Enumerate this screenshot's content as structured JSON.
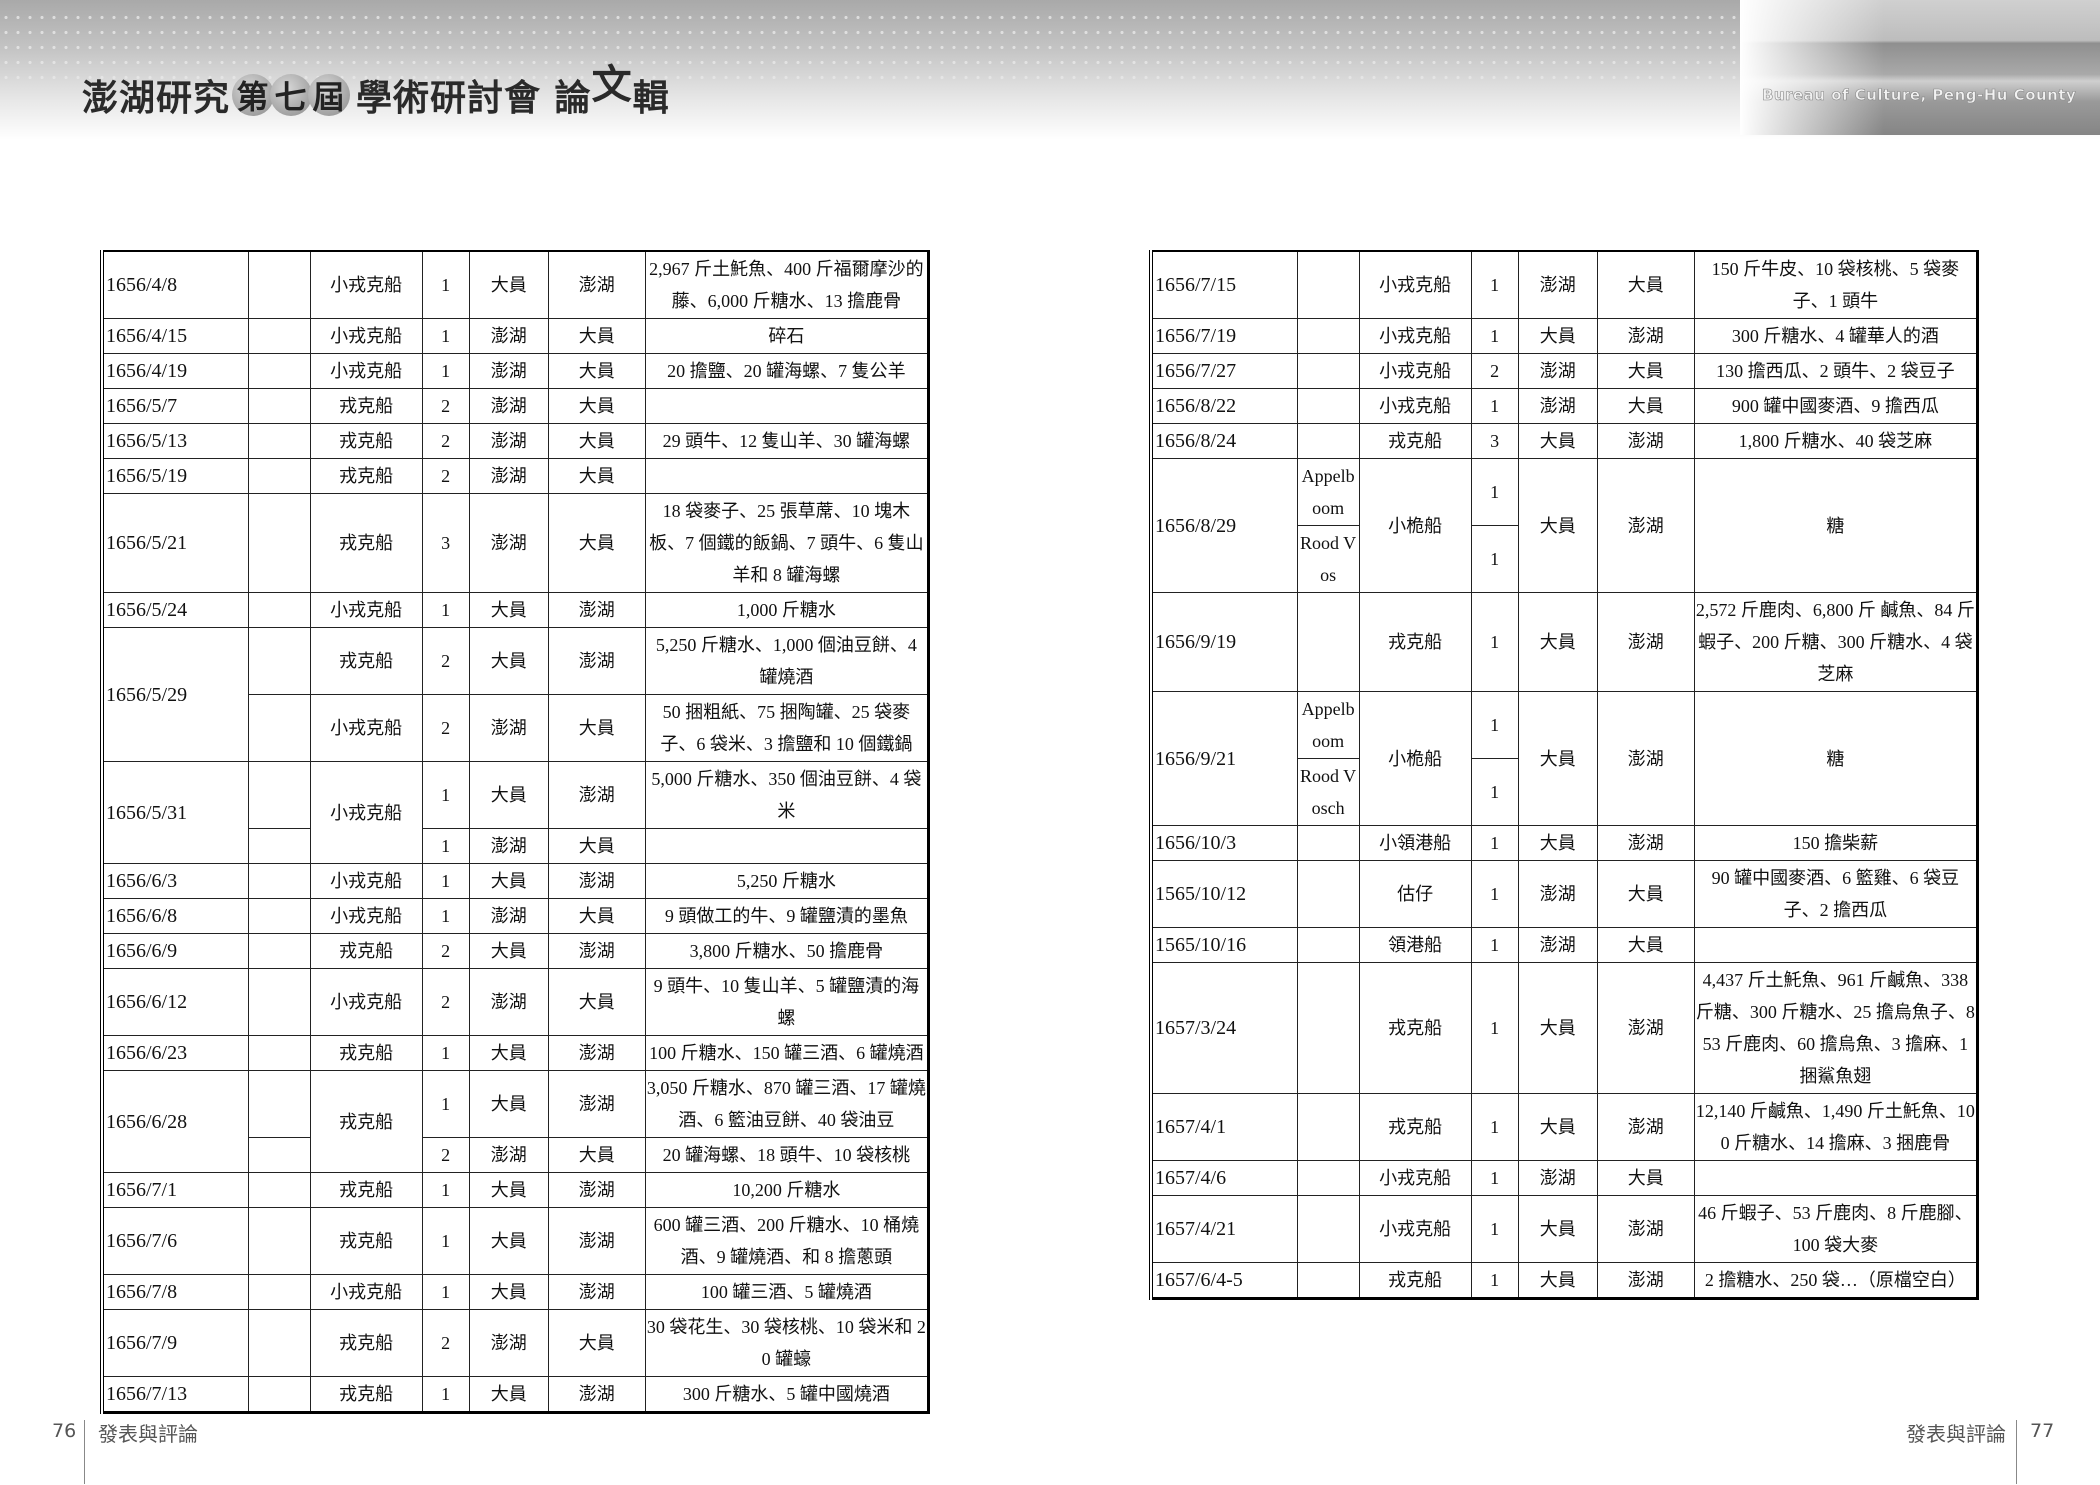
{
  "header": {
    "title_pre": "澎湖研究",
    "title_edition": [
      "第",
      "七",
      "屆"
    ],
    "title_mid": "學術研討會 論",
    "title_sup": "文",
    "title_end": "輯",
    "bureau": "Bureau of Culture, Peng-Hu County"
  },
  "tables": {
    "left": [
      [
        "1656/4/8",
        "",
        "小戎克船",
        "1",
        "大員",
        "澎湖",
        "2,967 斤土魠魚、400 斤福爾摩沙的藤、6,000 斤糖水、13 擔鹿骨"
      ],
      [
        "1656/4/15",
        "",
        "小戎克船",
        "1",
        "澎湖",
        "大員",
        "碎石"
      ],
      [
        "1656/4/19",
        "",
        "小戎克船",
        "1",
        "澎湖",
        "大員",
        "20 擔鹽、20 罐海螺、7 隻公羊"
      ],
      [
        "1656/5/7",
        "",
        "戎克船",
        "2",
        "澎湖",
        "大員",
        ""
      ],
      [
        "1656/5/13",
        "",
        "戎克船",
        "2",
        "澎湖",
        "大員",
        "29 頭牛、12 隻山羊、30 罐海螺"
      ],
      [
        "1656/5/19",
        "",
        "戎克船",
        "2",
        "澎湖",
        "大員",
        ""
      ],
      [
        "1656/5/21",
        "",
        "戎克船",
        "3",
        "澎湖",
        "大員",
        "18 袋麥子、25 張草蓆、10 塊木板、7 個鐵的飯鍋、7 頭牛、6 隻山羊和 8 罐海螺"
      ],
      [
        "1656/5/24",
        "",
        "小戎克船",
        "1",
        "大員",
        "澎湖",
        "1,000 斤糖水"
      ],
      [
        "1656/5/29",
        "",
        "戎克船",
        "2",
        "大員",
        "澎湖",
        "5,250 斤糖水、1,000 個油豆餅、4 罐燒酒"
      ],
      [
        null,
        "",
        "小戎克船",
        "2",
        "澎湖",
        "大員",
        "50 捆粗紙、75 捆陶罐、25 袋麥子、6 袋米、3 擔鹽和 10 個鐵鍋"
      ],
      [
        "1656/5/31",
        "",
        "小戎克船",
        "1",
        "大員",
        "澎湖",
        "5,000 斤糖水、350 個油豆餅、4 袋米"
      ],
      [
        null,
        "",
        null,
        "1",
        "澎湖",
        "大員",
        ""
      ],
      [
        "1656/6/3",
        "",
        "小戎克船",
        "1",
        "大員",
        "澎湖",
        "5,250 斤糖水"
      ],
      [
        "1656/6/8",
        "",
        "小戎克船",
        "1",
        "澎湖",
        "大員",
        "9 頭做工的牛、9 罐鹽漬的墨魚"
      ],
      [
        "1656/6/9",
        "",
        "戎克船",
        "2",
        "大員",
        "澎湖",
        "3,800 斤糖水、50 擔鹿骨"
      ],
      [
        "1656/6/12",
        "",
        "小戎克船",
        "2",
        "澎湖",
        "大員",
        "9 頭牛、10 隻山羊、5 罐鹽漬的海螺"
      ],
      [
        "1656/6/23",
        "",
        "戎克船",
        "1",
        "大員",
        "澎湖",
        "100 斤糖水、150 罐三酒、6 罐燒酒"
      ],
      [
        "1656/6/28",
        "",
        "戎克船",
        "1",
        "大員",
        "澎湖",
        "3,050 斤糖水、870 罐三酒、17 罐燒酒、6 籃油豆餅、40 袋油豆"
      ],
      [
        null,
        "",
        null,
        "2",
        "澎湖",
        "大員",
        "20 罐海螺、18 頭牛、10 袋核桃"
      ],
      [
        "1656/7/1",
        "",
        "戎克船",
        "1",
        "大員",
        "澎湖",
        "10,200 斤糖水"
      ],
      [
        "1656/7/6",
        "",
        "戎克船",
        "1",
        "大員",
        "澎湖",
        "600 罐三酒、200 斤糖水、10 桶燒酒、9 罐燒酒、和 8 擔蔥頭"
      ],
      [
        "1656/7/8",
        "",
        "小戎克船",
        "1",
        "大員",
        "澎湖",
        "100 罐三酒、5 罐燒酒"
      ],
      [
        "1656/7/9",
        "",
        "戎克船",
        "2",
        "澎湖",
        "大員",
        "30 袋花生、30 袋核桃、10 袋米和 20 罐蠔"
      ],
      [
        "1656/7/13",
        "",
        "戎克船",
        "1",
        "大員",
        "澎湖",
        "300 斤糖水、5 罐中國燒酒"
      ]
    ],
    "right": [
      [
        "1656/7/15",
        "",
        "小戎克船",
        "1",
        "澎湖",
        "大員",
        "150 斤牛皮、10 袋核桃、5 袋麥子、1 頭牛"
      ],
      [
        "1656/7/19",
        "",
        "小戎克船",
        "1",
        "大員",
        "澎湖",
        "300 斤糖水、4 罐華人的酒"
      ],
      [
        "1656/7/27",
        "",
        "小戎克船",
        "2",
        "澎湖",
        "大員",
        "130 擔西瓜、2 頭牛、2 袋豆子"
      ],
      [
        "1656/8/22",
        "",
        "小戎克船",
        "1",
        "澎湖",
        "大員",
        "900 罐中國麥酒、9 擔西瓜"
      ],
      [
        "1656/8/24",
        "",
        "戎克船",
        "3",
        "大員",
        "澎湖",
        "1,800 斤糖水、40 袋芝麻"
      ],
      [
        "1656/8/29",
        "Appelboom",
        "小桅船",
        "1",
        "大員",
        "澎湖",
        "糖"
      ],
      [
        null,
        "Rood Vos",
        null,
        "1",
        null,
        null,
        null
      ],
      [
        "1656/9/19",
        "",
        "戎克船",
        "1",
        "大員",
        "澎湖",
        "2,572 斤鹿肉、6,800 斤 鹹魚、84 斤蝦子、200 斤糖、300 斤糖水、4 袋芝麻"
      ],
      [
        "1656/9/21",
        "Appelboom",
        "小桅船",
        "1",
        "大員",
        "澎湖",
        "糖"
      ],
      [
        null,
        "Rood Vosch",
        null,
        "1",
        null,
        null,
        null
      ],
      [
        "1656/10/3",
        "",
        "小領港船",
        "1",
        "大員",
        "澎湖",
        "150 擔柴薪"
      ],
      [
        "1565/10/12",
        "",
        "估仔",
        "1",
        "澎湖",
        "大員",
        "90 罐中國麥酒、6 籃雞、6 袋豆子、2 擔西瓜"
      ],
      [
        "1565/10/16",
        "",
        "領港船",
        "1",
        "澎湖",
        "大員",
        ""
      ],
      [
        "1657/3/24",
        "",
        "戎克船",
        "1",
        "大員",
        "澎湖",
        "4,437 斤土魠魚、961 斤鹹魚、338 斤糖、300 斤糖水、25 擔烏魚子、853 斤鹿肉、60 擔烏魚、3 擔麻、1 捆鯊魚翅"
      ],
      [
        "1657/4/1",
        "",
        "戎克船",
        "1",
        "大員",
        "澎湖",
        "12,140 斤鹹魚、1,490 斤土魠魚、100 斤糖水、14 擔麻、3 捆鹿骨"
      ],
      [
        "1657/4/6",
        "",
        "小戎克船",
        "1",
        "澎湖",
        "大員",
        ""
      ],
      [
        "1657/4/21",
        "",
        "小戎克船",
        "1",
        "大員",
        "澎湖",
        "46 斤蝦子、53 斤鹿肉、8 斤鹿腳、100 袋大麥"
      ],
      [
        "1657/6/4-5",
        "",
        "戎克船",
        "1",
        "大員",
        "澎湖",
        "2 擔糖水、250 袋…（原檔空白）"
      ]
    ]
  },
  "footer": {
    "left_page": "76",
    "left_section": "發表與評論",
    "right_section": "發表與評論",
    "right_page": "77"
  }
}
